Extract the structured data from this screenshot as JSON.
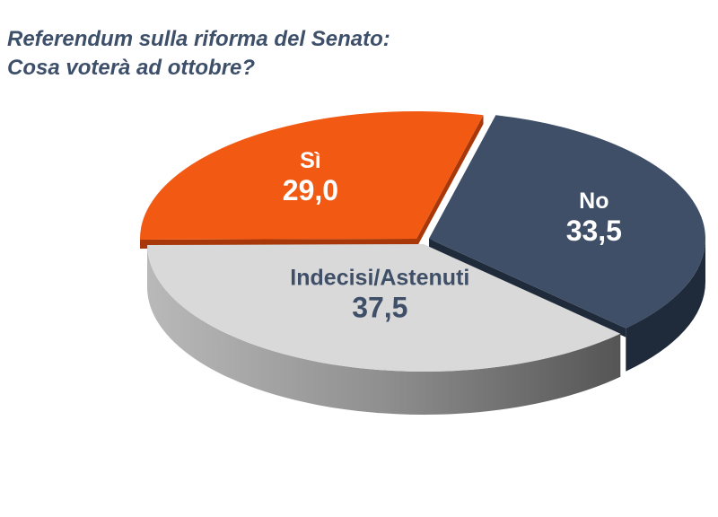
{
  "title_line1": "Referendum sulla riforma del Senato:",
  "title_line2": "Cosa voterà ad ottobre?",
  "chart_data": {
    "type": "pie",
    "three_d": true,
    "title": "Referendum sulla riforma del Senato: Cosa voterà ad ottobre?",
    "slices": [
      {
        "label": "No",
        "value": 33.5,
        "value_text": "33,5",
        "color": "#3f4f68",
        "side_color": "#1f2a3a",
        "label_color": "#ffffff"
      },
      {
        "label": "Indecisi/Astenuti",
        "value": 37.5,
        "value_text": "37,5",
        "color": "#d9d9d9",
        "side_color": "#8c8c8c",
        "label_color": "#3f4f68"
      },
      {
        "label": "Sì",
        "value": 29.0,
        "value_text": "29,0",
        "color": "#f25a14",
        "side_color": "#a8370a",
        "label_color": "#ffffff"
      }
    ],
    "legend": false
  }
}
